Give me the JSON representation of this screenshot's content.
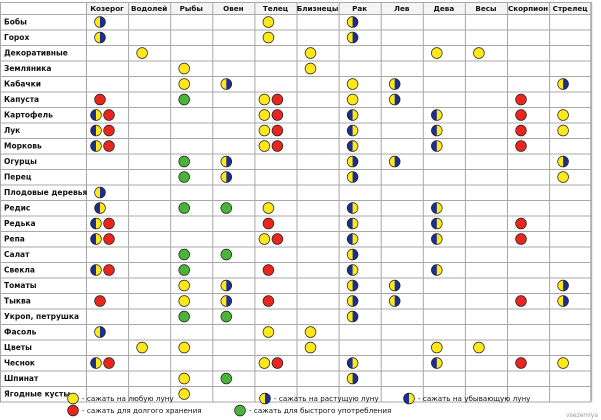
{
  "columns": [
    "Козерог",
    "Водолей",
    "Рыбы",
    "Овен",
    "Телец",
    "Близнецы",
    "Рак",
    "Лев",
    "Дева",
    "Весы",
    "Скорпион",
    "Стрелец"
  ],
  "rows": [
    {
      "name": "Бобы",
      "cells": [
        [
          "W"
        ],
        [],
        [],
        [],
        [
          "Y"
        ],
        [],
        [
          "W"
        ],
        [],
        [],
        [],
        [],
        []
      ]
    },
    {
      "name": "Горох",
      "cells": [
        [
          "W"
        ],
        [],
        [],
        [],
        [
          "Y"
        ],
        [],
        [
          "W"
        ],
        [],
        [],
        [],
        [],
        []
      ]
    },
    {
      "name": "Декоративные",
      "cells": [
        [],
        [
          "Y"
        ],
        [],
        [],
        [],
        [
          "Y"
        ],
        [],
        [],
        [
          "Y"
        ],
        [
          "Y"
        ],
        [],
        []
      ]
    },
    {
      "name": "Земляника",
      "cells": [
        [],
        [],
        [
          "Y"
        ],
        [],
        [],
        [
          "Y"
        ],
        [],
        [],
        [],
        [],
        [],
        []
      ]
    },
    {
      "name": "Кабачки",
      "cells": [
        [],
        [],
        [
          "Y"
        ],
        [
          "W"
        ],
        [],
        [],
        [
          "Y"
        ],
        [
          "W"
        ],
        [],
        [],
        [],
        [
          "W"
        ]
      ]
    },
    {
      "name": "Капуста",
      "cells": [
        [
          "R"
        ],
        [],
        [
          "G"
        ],
        [],
        [
          "Y",
          "R"
        ],
        [],
        [
          "Y"
        ],
        [
          "W"
        ],
        [],
        [],
        [
          "R"
        ],
        []
      ]
    },
    {
      "name": "Картофель",
      "cells": [
        [
          "B",
          "R"
        ],
        [],
        [],
        [],
        [
          "Y",
          "R"
        ],
        [],
        [
          "B"
        ],
        [],
        [
          "B"
        ],
        [],
        [
          "R"
        ],
        [
          "Y"
        ]
      ]
    },
    {
      "name": "Лук",
      "cells": [
        [
          "B",
          "R"
        ],
        [],
        [],
        [],
        [
          "Y",
          "R"
        ],
        [],
        [
          "B"
        ],
        [],
        [
          "B"
        ],
        [],
        [
          "R"
        ],
        [
          "Y"
        ]
      ]
    },
    {
      "name": "Морковь",
      "cells": [
        [
          "B",
          "R"
        ],
        [],
        [],
        [],
        [
          "Y",
          "R"
        ],
        [],
        [
          "B"
        ],
        [],
        [
          "B"
        ],
        [],
        [
          "R"
        ],
        []
      ]
    },
    {
      "name": "Огурцы",
      "cells": [
        [],
        [],
        [
          "G"
        ],
        [
          "W"
        ],
        [],
        [],
        [
          "W"
        ],
        [
          "W"
        ],
        [],
        [],
        [],
        [
          "W"
        ]
      ]
    },
    {
      "name": "Перец",
      "cells": [
        [],
        [],
        [
          "G"
        ],
        [
          "W"
        ],
        [],
        [],
        [
          "W"
        ],
        [],
        [],
        [],
        [],
        [
          "Y"
        ]
      ]
    },
    {
      "name": "Плодовые деревья",
      "cells": [
        [
          "W"
        ],
        [],
        [],
        [],
        [],
        [],
        [],
        [],
        [],
        [],
        [],
        []
      ]
    },
    {
      "name": "Редис",
      "cells": [
        [
          "B"
        ],
        [],
        [
          "G"
        ],
        [
          "G"
        ],
        [
          "Y"
        ],
        [],
        [
          "B"
        ],
        [],
        [
          "B"
        ],
        [],
        [],
        []
      ]
    },
    {
      "name": "Редька",
      "cells": [
        [
          "B",
          "R"
        ],
        [],
        [],
        [],
        [
          "R"
        ],
        [],
        [
          "B"
        ],
        [],
        [
          "B"
        ],
        [],
        [
          "R"
        ],
        []
      ]
    },
    {
      "name": "Репа",
      "cells": [
        [
          "B",
          "R"
        ],
        [],
        [],
        [],
        [
          "Y",
          "R"
        ],
        [],
        [
          "B"
        ],
        [],
        [
          "B"
        ],
        [],
        [
          "R"
        ],
        []
      ]
    },
    {
      "name": "Салат",
      "cells": [
        [],
        [],
        [
          "G"
        ],
        [
          "G"
        ],
        [],
        [],
        [
          "W"
        ],
        [],
        [],
        [],
        [],
        []
      ]
    },
    {
      "name": "Свекла",
      "cells": [
        [
          "B",
          "R"
        ],
        [],
        [
          "G"
        ],
        [],
        [
          "R"
        ],
        [],
        [
          "B"
        ],
        [],
        [
          "B"
        ],
        [],
        [],
        []
      ]
    },
    {
      "name": "Томаты",
      "cells": [
        [],
        [],
        [
          "Y"
        ],
        [
          "W"
        ],
        [],
        [],
        [
          "W"
        ],
        [
          "W"
        ],
        [],
        [],
        [],
        [
          "W"
        ]
      ]
    },
    {
      "name": "Тыква",
      "cells": [
        [
          "R"
        ],
        [],
        [
          "Y"
        ],
        [
          "W"
        ],
        [
          "R"
        ],
        [],
        [
          "W"
        ],
        [
          "W"
        ],
        [],
        [],
        [
          "R"
        ],
        [
          "W"
        ]
      ]
    },
    {
      "name": "Укроп, петрушка",
      "cells": [
        [],
        [],
        [
          "G"
        ],
        [
          "G"
        ],
        [],
        [],
        [
          "W"
        ],
        [],
        [],
        [],
        [],
        []
      ]
    },
    {
      "name": "Фасоль",
      "cells": [
        [
          "W"
        ],
        [],
        [],
        [],
        [
          "Y"
        ],
        [
          "Y"
        ],
        [],
        [],
        [],
        [],
        [],
        []
      ]
    },
    {
      "name": "Цветы",
      "cells": [
        [],
        [
          "Y"
        ],
        [
          "Y"
        ],
        [],
        [],
        [
          "Y"
        ],
        [],
        [],
        [
          "Y"
        ],
        [
          "Y"
        ],
        [],
        []
      ]
    },
    {
      "name": "Чеснок",
      "cells": [
        [
          "B",
          "R"
        ],
        [],
        [],
        [],
        [
          "Y",
          "R"
        ],
        [],
        [
          "B"
        ],
        [],
        [
          "B"
        ],
        [],
        [
          "R"
        ],
        [
          "Y"
        ]
      ]
    },
    {
      "name": "Шпинат",
      "cells": [
        [],
        [],
        [
          "Y"
        ],
        [
          "G"
        ],
        [],
        [],
        [
          "W"
        ],
        [],
        [],
        [],
        [],
        []
      ]
    },
    {
      "name": "Ягодные кусты",
      "cells": [
        [],
        [],
        [
          "Y"
        ],
        [],
        [],
        [],
        [],
        [],
        [],
        [],
        [],
        []
      ]
    }
  ],
  "legend": [
    {
      "symbol": "Y",
      "text": "- сажать на любую луну"
    },
    {
      "symbol": "W",
      "text": "- сажать на растущую луну"
    },
    {
      "symbol": "B",
      "text": "- сажать на убывающую луну"
    },
    {
      "symbol": "R",
      "text": "- сажать для долгого хранения"
    },
    {
      "symbol": "G",
      "text": "- сажать для быстрого употребления"
    }
  ],
  "colors": {
    "yellow": "#ffe81a",
    "red": "#e8261e",
    "green": "#49b33a",
    "navy": "#1c2e92",
    "outline": "#222222",
    "grid": "#a8a8a8",
    "header_bg": "#f4f4f4"
  },
  "watermark": "vsezemlya"
}
